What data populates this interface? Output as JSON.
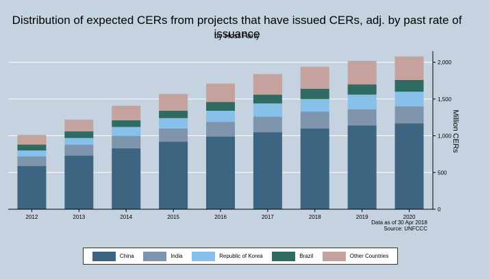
{
  "chart_data": {
    "type": "bar",
    "stacked": true,
    "title": "Distribution of expected CERs from projects that have issued CERs, adj. by past rate of issuance",
    "subtitle": "by Host Party",
    "ylabel": "Million CERs",
    "xlabel": "",
    "ylim": [
      0,
      2150
    ],
    "yticks": [
      0,
      500,
      1000,
      1500,
      2000
    ],
    "ytick_labels": [
      "0",
      "500",
      "1,000",
      "1,500",
      "2,000"
    ],
    "categories": [
      "2012",
      "2013",
      "2014",
      "2015",
      "2016",
      "2017",
      "2018",
      "2019",
      "2020"
    ],
    "series": [
      {
        "name": "China",
        "color": "#3d6480",
        "values": [
          590,
          730,
          830,
          920,
          990,
          1050,
          1100,
          1140,
          1170
        ]
      },
      {
        "name": "India",
        "color": "#7f95ad",
        "values": [
          130,
          150,
          170,
          180,
          200,
          210,
          230,
          220,
          230
        ]
      },
      {
        "name": "Republic of Korea",
        "color": "#87c1e9",
        "values": [
          80,
          90,
          120,
          140,
          150,
          180,
          170,
          200,
          200
        ]
      },
      {
        "name": "Brazil",
        "color": "#2f6b62",
        "values": [
          80,
          90,
          90,
          100,
          120,
          120,
          140,
          140,
          160
        ]
      },
      {
        "name": "Other Countries",
        "color": "#c5a29e",
        "values": [
          130,
          160,
          200,
          230,
          250,
          280,
          300,
          320,
          320
        ]
      }
    ],
    "legend_position": "bottom",
    "grid": true,
    "notes": [
      "Data as of 30 Apr 2018",
      "Source: UNFCCC"
    ]
  }
}
